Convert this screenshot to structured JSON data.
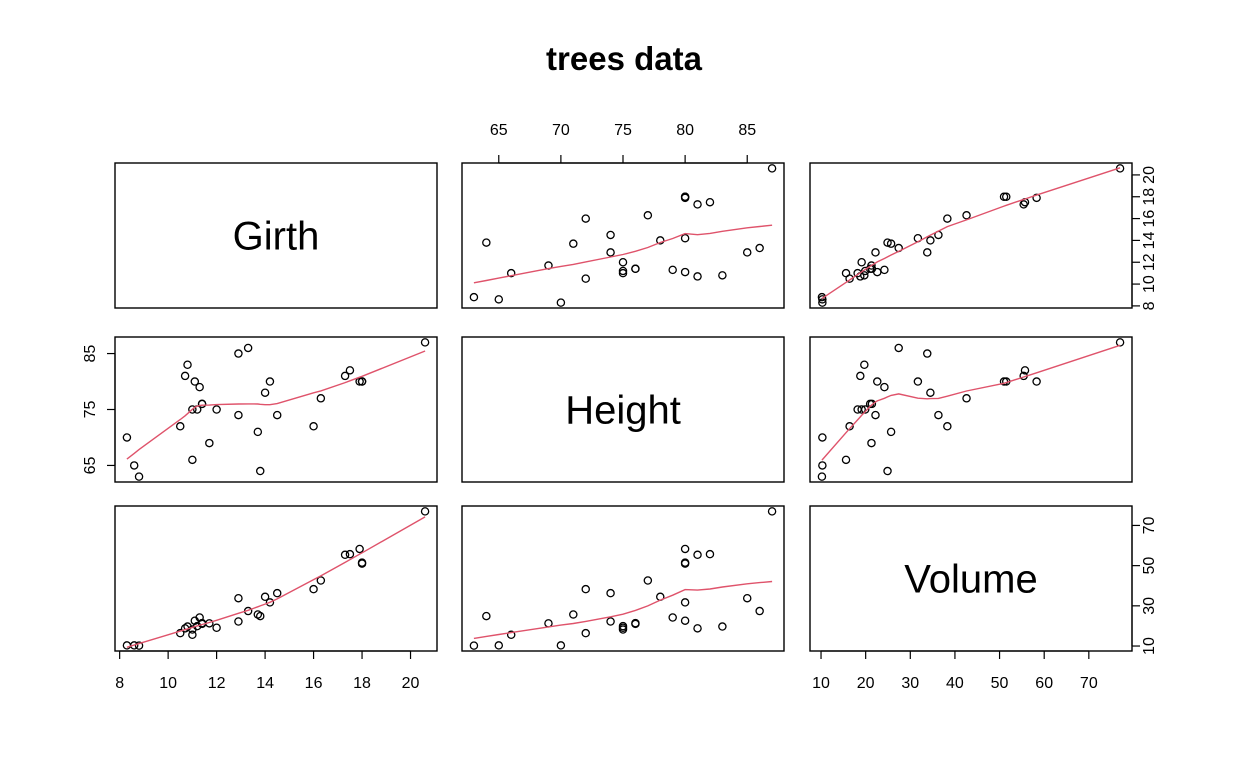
{
  "chart_data": {
    "type": "scatter",
    "title": "trees data",
    "variables": [
      "Girth",
      "Height",
      "Volume"
    ],
    "axis_ticks": {
      "Girth": [
        8,
        10,
        12,
        14,
        16,
        18,
        20
      ],
      "Height": [
        65,
        70,
        75,
        80,
        85
      ],
      "Height_left": [
        65,
        75,
        85
      ],
      "Volume": [
        10,
        20,
        30,
        40,
        50,
        60,
        70
      ],
      "Volume_right": [
        10,
        30,
        50,
        70
      ]
    },
    "tick_sides": {
      "bottom": [
        "Girth",
        "",
        "Volume"
      ],
      "top": [
        "",
        "Height",
        ""
      ],
      "left": [
        "",
        "Height",
        ""
      ],
      "right": [
        "Girth",
        "",
        "Volume"
      ]
    },
    "ranges": {
      "Girth": [
        8.3,
        20.6
      ],
      "Height": [
        63,
        87
      ],
      "Volume": [
        10.2,
        77
      ]
    },
    "smoother": "lowess",
    "point_color": "#000000",
    "smooth_color": "#DF536B",
    "records": [
      {
        "Girth": 8.3,
        "Height": 70,
        "Volume": 10.3
      },
      {
        "Girth": 8.6,
        "Height": 65,
        "Volume": 10.3
      },
      {
        "Girth": 8.8,
        "Height": 63,
        "Volume": 10.2
      },
      {
        "Girth": 10.5,
        "Height": 72,
        "Volume": 16.4
      },
      {
        "Girth": 10.7,
        "Height": 81,
        "Volume": 18.8
      },
      {
        "Girth": 10.8,
        "Height": 83,
        "Volume": 19.7
      },
      {
        "Girth": 11.0,
        "Height": 66,
        "Volume": 15.6
      },
      {
        "Girth": 11.0,
        "Height": 75,
        "Volume": 18.2
      },
      {
        "Girth": 11.1,
        "Height": 80,
        "Volume": 22.6
      },
      {
        "Girth": 11.2,
        "Height": 75,
        "Volume": 19.9
      },
      {
        "Girth": 11.3,
        "Height": 79,
        "Volume": 24.2
      },
      {
        "Girth": 11.4,
        "Height": 76,
        "Volume": 21.0
      },
      {
        "Girth": 11.4,
        "Height": 76,
        "Volume": 21.4
      },
      {
        "Girth": 11.7,
        "Height": 69,
        "Volume": 21.3
      },
      {
        "Girth": 12.0,
        "Height": 75,
        "Volume": 19.1
      },
      {
        "Girth": 12.9,
        "Height": 74,
        "Volume": 22.2
      },
      {
        "Girth": 12.9,
        "Height": 85,
        "Volume": 33.8
      },
      {
        "Girth": 13.3,
        "Height": 86,
        "Volume": 27.4
      },
      {
        "Girth": 13.7,
        "Height": 71,
        "Volume": 25.7
      },
      {
        "Girth": 13.8,
        "Height": 64,
        "Volume": 24.9
      },
      {
        "Girth": 14.0,
        "Height": 78,
        "Volume": 34.5
      },
      {
        "Girth": 14.2,
        "Height": 80,
        "Volume": 31.7
      },
      {
        "Girth": 14.5,
        "Height": 74,
        "Volume": 36.3
      },
      {
        "Girth": 16.0,
        "Height": 72,
        "Volume": 38.3
      },
      {
        "Girth": 16.3,
        "Height": 77,
        "Volume": 42.6
      },
      {
        "Girth": 17.3,
        "Height": 81,
        "Volume": 55.4
      },
      {
        "Girth": 17.5,
        "Height": 82,
        "Volume": 55.7
      },
      {
        "Girth": 17.9,
        "Height": 80,
        "Volume": 58.3
      },
      {
        "Girth": 18.0,
        "Height": 80,
        "Volume": 51.5
      },
      {
        "Girth": 18.0,
        "Height": 80,
        "Volume": 51.0
      },
      {
        "Girth": 20.6,
        "Height": 87,
        "Volume": 77.0
      }
    ]
  }
}
